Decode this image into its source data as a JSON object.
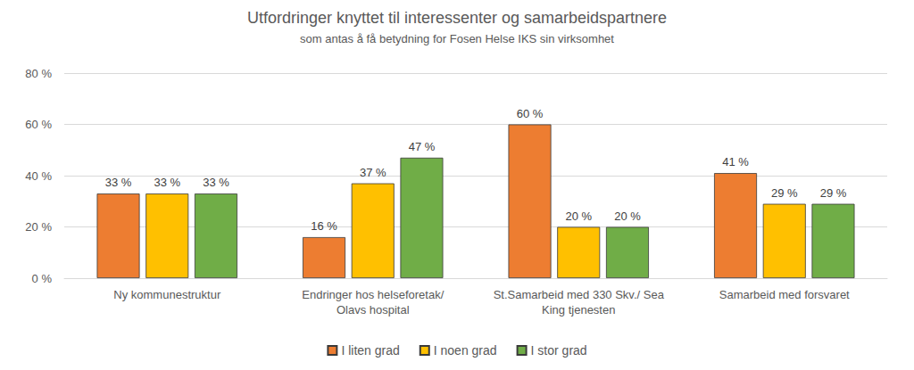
{
  "chart_data": {
    "type": "bar",
    "title": "Utfordringer knyttet til interessenter og samarbeidspartnere",
    "subtitle": "som antas å få betydning for Fosen Helse IKS sin virksomhet",
    "categories": [
      "Ny kommunestruktur",
      "Endringer hos helseforetak/\nOlavs hospital",
      "St.Samarbeid med 330 Skv./ Sea\nKing tjenesten",
      "Samarbeid med forsvaret"
    ],
    "series": [
      {
        "name": "I liten grad",
        "color": "#ed7d31",
        "values": [
          33,
          16,
          60,
          41
        ],
        "value_labels": [
          "33 %",
          "16 %",
          "60 %",
          "41 %"
        ]
      },
      {
        "name": "I noen grad",
        "color": "#ffc000",
        "values": [
          33,
          37,
          20,
          29
        ],
        "value_labels": [
          "33 %",
          "37 %",
          "20 %",
          "29 %"
        ]
      },
      {
        "name": "I stor grad",
        "color": "#70ad47",
        "values": [
          33,
          47,
          20,
          29
        ],
        "value_labels": [
          "33 %",
          "47 %",
          "20 %",
          "29 %"
        ]
      }
    ],
    "ylim": [
      0,
      80
    ],
    "yticks": [
      {
        "value": 0,
        "label": "0 %"
      },
      {
        "value": 20,
        "label": "20 %"
      },
      {
        "value": 40,
        "label": "40 %"
      },
      {
        "value": 60,
        "label": "60 %"
      },
      {
        "value": 80,
        "label": "80 %"
      }
    ],
    "grid": true,
    "legend": "bottom",
    "data_labels": true
  }
}
